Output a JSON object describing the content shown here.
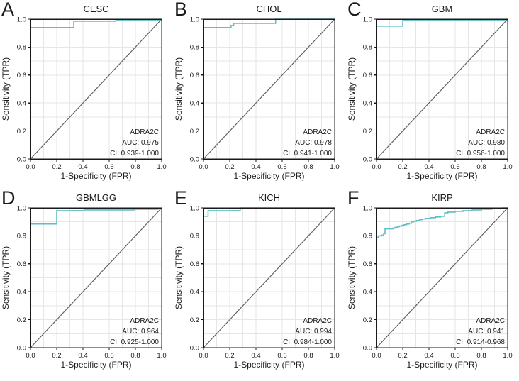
{
  "figure": {
    "accent_color": "#5fbec5",
    "diagonal_color": "#606060",
    "grid_color": "#e6e6e6",
    "box_color": "#1a1a1a",
    "xlabel": "1-Specificity (FPR)",
    "ylabel": "Sensitivity (TPR)",
    "x_ticks": [
      "0.0",
      "0.2",
      "0.4",
      "0.6",
      "0.8",
      "1.0"
    ],
    "y_ticks": [
      "0.0",
      "0.2",
      "0.4",
      "0.6",
      "0.8",
      "1.0"
    ]
  },
  "chart_data": [
    {
      "type": "line",
      "panel_letter": "A",
      "title": "CESC",
      "gene": "ADRA2C",
      "auc_label": "AUC: 0.975",
      "ci_label": "CI: 0.939-1.000",
      "xlabel": "1-Specificity (FPR)",
      "ylabel": "Sensitivity (TPR)",
      "xlim": [
        0,
        1
      ],
      "ylim": [
        0,
        1
      ],
      "roc_points": [
        [
          0,
          0
        ],
        [
          0,
          0.94
        ],
        [
          0.33,
          0.94
        ],
        [
          0.33,
          0.985
        ],
        [
          0.65,
          0.985
        ],
        [
          0.65,
          0.99
        ],
        [
          1,
          0.99
        ],
        [
          1,
          1
        ]
      ]
    },
    {
      "type": "line",
      "panel_letter": "B",
      "title": "CHOL",
      "gene": "ADRA2C",
      "auc_label": "AUC: 0.978",
      "ci_label": "CI: 0.941-1.000",
      "xlabel": "1-Specificity (FPR)",
      "ylabel": "Sensitivity (TPR)",
      "xlim": [
        0,
        1
      ],
      "ylim": [
        0,
        1
      ],
      "roc_points": [
        [
          0,
          0
        ],
        [
          0,
          0.94
        ],
        [
          0.21,
          0.94
        ],
        [
          0.21,
          0.955
        ],
        [
          0.23,
          0.955
        ],
        [
          0.23,
          0.97
        ],
        [
          0.55,
          0.97
        ],
        [
          0.55,
          1
        ],
        [
          1,
          1
        ]
      ]
    },
    {
      "type": "line",
      "panel_letter": "C",
      "title": "GBM",
      "gene": "ADRA2C",
      "auc_label": "AUC: 0.980",
      "ci_label": "CI: 0.956-1.000",
      "xlabel": "1-Specificity (FPR)",
      "ylabel": "Sensitivity (TPR)",
      "xlim": [
        0,
        1
      ],
      "ylim": [
        0,
        1
      ],
      "roc_points": [
        [
          0,
          0
        ],
        [
          0,
          0.95
        ],
        [
          0.2,
          0.95
        ],
        [
          0.2,
          0.99
        ],
        [
          0.96,
          0.99
        ],
        [
          1,
          1
        ]
      ]
    },
    {
      "type": "line",
      "panel_letter": "D",
      "title": "GBMLGG",
      "gene": "ADRA2C",
      "auc_label": "AUC: 0.964",
      "ci_label": "CI: 0.925-1.000",
      "xlabel": "1-Specificity (FPR)",
      "ylabel": "Sensitivity (TPR)",
      "xlim": [
        0,
        1
      ],
      "ylim": [
        0,
        1
      ],
      "roc_points": [
        [
          0,
          0
        ],
        [
          0,
          0.885
        ],
        [
          0.2,
          0.885
        ],
        [
          0.2,
          0.98
        ],
        [
          0.41,
          0.98
        ],
        [
          0.41,
          0.985
        ],
        [
          0.79,
          0.985
        ],
        [
          0.79,
          0.99
        ],
        [
          0.97,
          0.99
        ],
        [
          1,
          1
        ]
      ]
    },
    {
      "type": "line",
      "panel_letter": "E",
      "title": "KICH",
      "gene": "ADRA2C",
      "auc_label": "AUC: 0.994",
      "ci_label": "CI: 0.984-1.000",
      "xlabel": "1-Specificity (FPR)",
      "ylabel": "Sensitivity (TPR)",
      "xlim": [
        0,
        1
      ],
      "ylim": [
        0,
        1
      ],
      "roc_points": [
        [
          0,
          0
        ],
        [
          0,
          0.94
        ],
        [
          0.035,
          0.94
        ],
        [
          0.035,
          0.98
        ],
        [
          0.28,
          0.98
        ],
        [
          0.28,
          1
        ],
        [
          1,
          1
        ]
      ]
    },
    {
      "type": "line",
      "panel_letter": "F",
      "title": "KIRP",
      "gene": "ADRA2C",
      "auc_label": "AUC: 0.941",
      "ci_label": "CI: 0.914-0.968",
      "xlabel": "1-Specificity (FPR)",
      "ylabel": "Sensitivity (TPR)",
      "xlim": [
        0,
        1
      ],
      "ylim": [
        0,
        1
      ],
      "roc_points": [
        [
          0,
          0
        ],
        [
          0,
          0.79
        ],
        [
          0.015,
          0.79
        ],
        [
          0.015,
          0.8
        ],
        [
          0.04,
          0.8
        ],
        [
          0.04,
          0.805
        ],
        [
          0.055,
          0.805
        ],
        [
          0.055,
          0.815
        ],
        [
          0.065,
          0.815
        ],
        [
          0.065,
          0.85
        ],
        [
          0.125,
          0.85
        ],
        [
          0.125,
          0.855
        ],
        [
          0.14,
          0.855
        ],
        [
          0.14,
          0.86
        ],
        [
          0.16,
          0.86
        ],
        [
          0.16,
          0.865
        ],
        [
          0.175,
          0.865
        ],
        [
          0.175,
          0.87
        ],
        [
          0.195,
          0.87
        ],
        [
          0.195,
          0.875
        ],
        [
          0.21,
          0.875
        ],
        [
          0.21,
          0.88
        ],
        [
          0.23,
          0.88
        ],
        [
          0.23,
          0.885
        ],
        [
          0.25,
          0.885
        ],
        [
          0.25,
          0.89
        ],
        [
          0.265,
          0.89
        ],
        [
          0.265,
          0.9
        ],
        [
          0.285,
          0.9
        ],
        [
          0.285,
          0.905
        ],
        [
          0.305,
          0.905
        ],
        [
          0.305,
          0.91
        ],
        [
          0.33,
          0.91
        ],
        [
          0.33,
          0.915
        ],
        [
          0.35,
          0.915
        ],
        [
          0.35,
          0.92
        ],
        [
          0.375,
          0.92
        ],
        [
          0.375,
          0.925
        ],
        [
          0.41,
          0.925
        ],
        [
          0.41,
          0.93
        ],
        [
          0.45,
          0.93
        ],
        [
          0.45,
          0.935
        ],
        [
          0.49,
          0.935
        ],
        [
          0.49,
          0.94
        ],
        [
          0.52,
          0.94
        ],
        [
          0.52,
          0.955
        ],
        [
          0.52,
          0.965
        ],
        [
          0.545,
          0.965
        ],
        [
          0.545,
          0.97
        ],
        [
          0.6,
          0.97
        ],
        [
          0.6,
          0.975
        ],
        [
          0.66,
          0.975
        ],
        [
          0.66,
          0.98
        ],
        [
          0.73,
          0.98
        ],
        [
          0.73,
          0.985
        ],
        [
          0.8,
          0.985
        ],
        [
          0.8,
          0.99
        ],
        [
          0.88,
          0.99
        ],
        [
          0.88,
          0.995
        ],
        [
          0.96,
          0.995
        ],
        [
          0.96,
          1
        ],
        [
          1,
          1
        ]
      ]
    }
  ]
}
